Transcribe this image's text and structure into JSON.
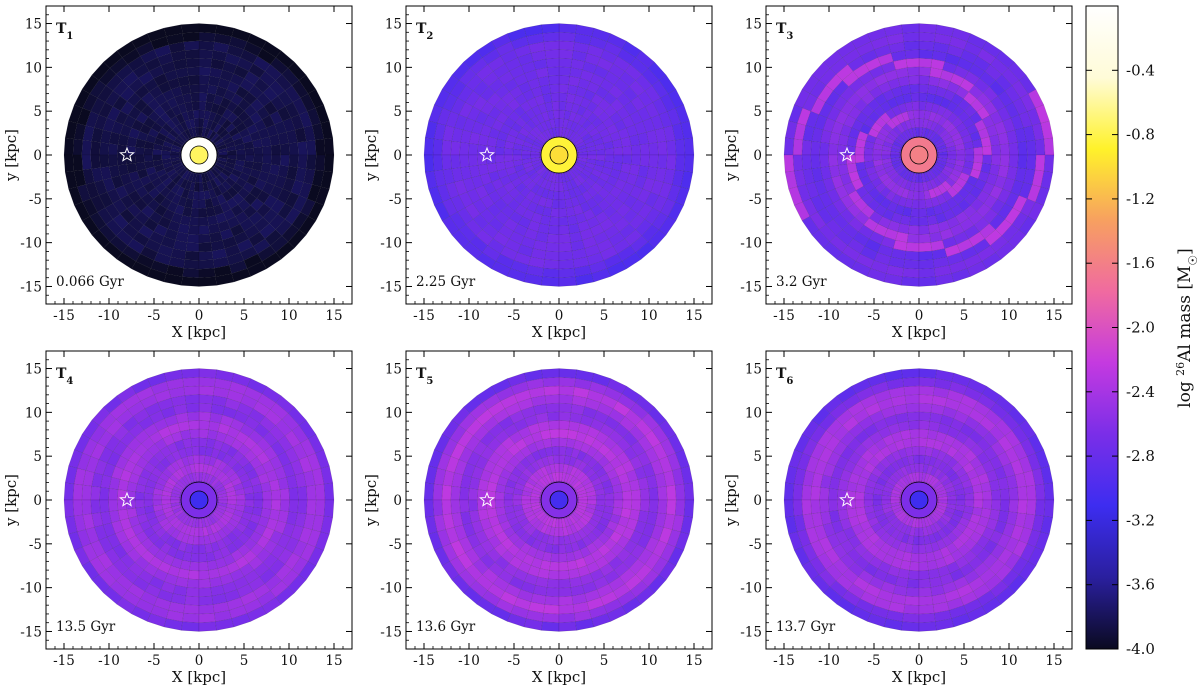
{
  "chart_data": {
    "type": "heatmap",
    "layout": "2x3 grid of face-on galactic disk maps",
    "xlabel": "X [kpc]",
    "ylabel": "y [kpc]",
    "xlim": [
      -17,
      17
    ],
    "ylim": [
      -17,
      17
    ],
    "ticks": [
      "-15",
      "-10",
      "-5",
      "0",
      "5",
      "10",
      "15"
    ],
    "disk_radius_kpc": 15,
    "sun_marker": {
      "x": -8,
      "y": 0,
      "symbol": "star"
    },
    "colorbar": {
      "label_prefix": "log ",
      "label_sup": "26",
      "label_main": "Al mass [M",
      "label_sun": "☉",
      "label_suffix": "]",
      "min": -4.0,
      "max": 0.0,
      "ticks": [
        "-0.4",
        "-0.8",
        "-1.2",
        "-1.6",
        "-2.0",
        "-2.4",
        "-2.8",
        "-3.2",
        "-3.6",
        "-4.0"
      ],
      "colormap": "plasma-like",
      "stops": [
        "#0a0a20",
        "#2a1f9e",
        "#3d2df0",
        "#7a2ee8",
        "#c43ae0",
        "#f06aa0",
        "#f7a060",
        "#fff22a",
        "#fffbd8",
        "#ffffff"
      ]
    },
    "panels": [
      {
        "label": "T",
        "sub": "1",
        "time": "0.066 Gyr",
        "disk_value": -3.85,
        "center_value": -0.75,
        "ring_value": -0.05,
        "spiral_value": null,
        "ring_amp": 0.0
      },
      {
        "label": "T",
        "sub": "2",
        "time": "2.25 Gyr",
        "disk_value": -2.75,
        "center_value": -1.0,
        "ring_value": -0.85,
        "spiral_value": null,
        "ring_amp": 0.0
      },
      {
        "label": "T",
        "sub": "3",
        "time": "3.2 Gyr",
        "disk_value": -2.7,
        "center_value": -1.6,
        "ring_value": -1.65,
        "spiral_value": -2.3,
        "ring_amp": 0.15
      },
      {
        "label": "T",
        "sub": "4",
        "time": "13.5 Gyr",
        "disk_value": -2.5,
        "center_value": -3.1,
        "ring_value": -2.65,
        "spiral_value": null,
        "ring_amp": 0.12
      },
      {
        "label": "T",
        "sub": "5",
        "time": "13.6 Gyr",
        "disk_value": -2.45,
        "center_value": -3.05,
        "ring_value": -2.6,
        "spiral_value": null,
        "ring_amp": 0.15
      },
      {
        "label": "T",
        "sub": "6",
        "time": "13.7 Gyr",
        "disk_value": -2.5,
        "center_value": -3.1,
        "ring_value": -2.65,
        "spiral_value": null,
        "ring_amp": 0.13
      }
    ]
  }
}
